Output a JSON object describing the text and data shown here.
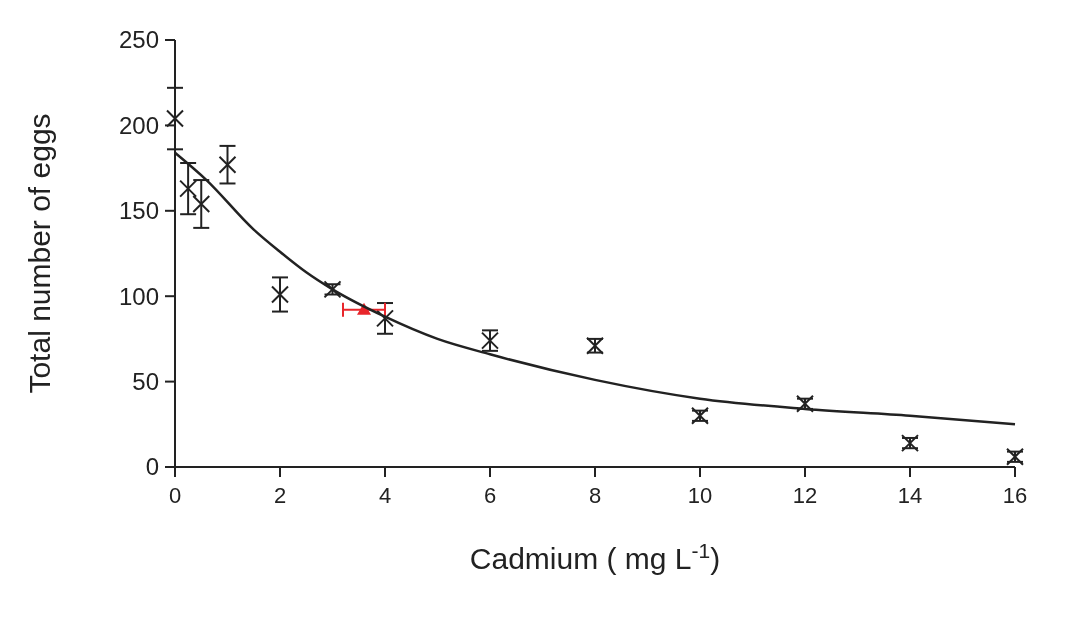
{
  "chart_data": {
    "type": "scatter",
    "xlabel": "Cadmium ( mg L$^{-1}$)",
    "ylabel": "Total number of eggs",
    "xlim": [
      0,
      16
    ],
    "xticks": [
      0,
      2,
      4,
      6,
      8,
      10,
      12,
      14,
      16
    ],
    "ylim": [
      0,
      250
    ],
    "yticks": [
      0,
      50,
      100,
      150,
      200,
      250
    ],
    "grid": false,
    "series": [
      {
        "color": "#222222",
        "marker": "cross",
        "x": [
          0,
          0.25,
          0.5,
          1,
          2,
          3,
          4,
          6,
          8,
          10,
          12,
          14,
          16
        ],
        "values": [
          204,
          163,
          154,
          177,
          101,
          104,
          87,
          74,
          71,
          30,
          37,
          14,
          6
        ],
        "errors": [
          18,
          15,
          14,
          11,
          10,
          3,
          9,
          6,
          4,
          3,
          3,
          3,
          3
        ]
      },
      {
        "color": "#e8262b",
        "marker": "triangle",
        "x": [
          3.6
        ],
        "values": [
          92
        ],
        "xerrors": [
          0.4
        ]
      },
      {
        "type": "line",
        "color": "#222222",
        "marker": "none",
        "line_style": "solid",
        "x": [
          0,
          0.6,
          1.5,
          2,
          2.5,
          3,
          4,
          5,
          6,
          8,
          10,
          12,
          14,
          16
        ],
        "values": [
          184,
          168,
          139,
          126,
          114,
          104,
          88,
          75,
          66,
          51,
          40,
          34,
          30,
          25
        ]
      }
    ]
  }
}
